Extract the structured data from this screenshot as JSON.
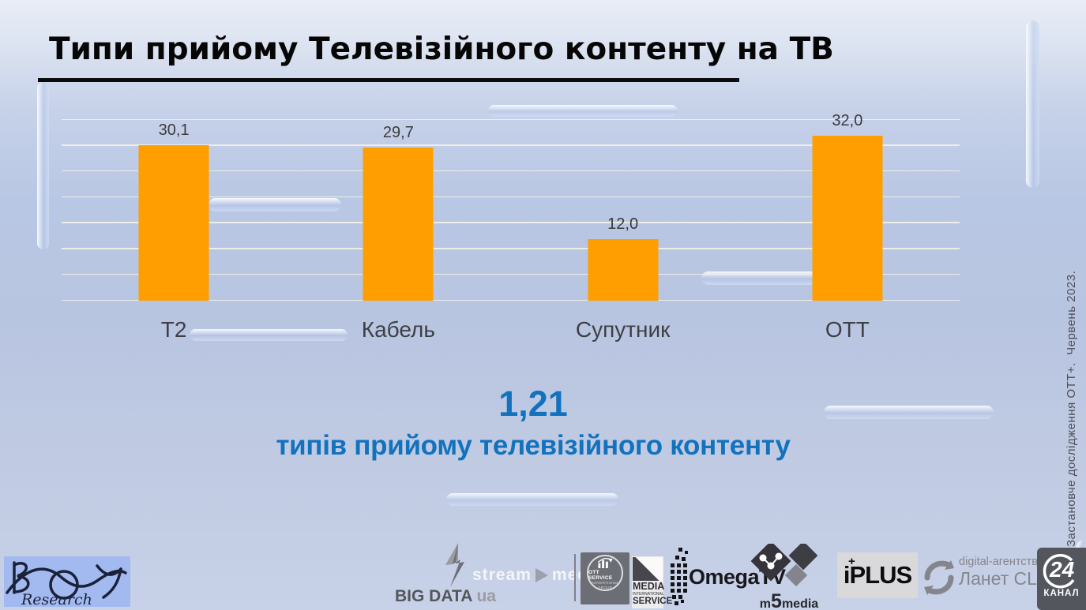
{
  "title": {
    "text": "Типи прийому Телевізійного контенту на ТВ"
  },
  "chart_data": {
    "type": "bar",
    "title": "Типи прийому Телевізійного контенту на ТВ",
    "categories": [
      "Т2",
      "Кабель",
      "Супутник",
      "ОТТ"
    ],
    "values": [
      30.1,
      29.7,
      12.0,
      32.0
    ],
    "value_labels": [
      "30,1",
      "29,7",
      "12,0",
      "32,0"
    ],
    "xlabel": "",
    "ylabel": "",
    "ylim": [
      0,
      35
    ],
    "gridline_step": 5,
    "grid": true,
    "legend": false,
    "bar_color": "#FF9E00"
  },
  "stat": {
    "value": "1,21",
    "label": "типів прийому телевізійного контенту",
    "color": "#1272BD"
  },
  "side_note": {
    "text": "Застановче дослідження ОТТ+.  Червень 2023."
  },
  "footer": {
    "research": {
      "text": "Research"
    },
    "bigdata": {
      "bold": "BIG DATA",
      "light": "ua"
    },
    "streammedia": {
      "left": "stream",
      "right": "media"
    },
    "ottservice": {
      "line1": "OTT SERVICE",
      "line2": "ADVERTISING GROUP"
    },
    "mediaintl": {
      "line1": "MEDIA",
      "line2": "INTERNATIONAL",
      "line3": "SERVICE"
    },
    "omega": {
      "text": "OmegaTV"
    },
    "m5": {
      "m": "m",
      "five": "5",
      "media": "media"
    },
    "iplus": {
      "plus": "+",
      "text": "iPLUS"
    },
    "lanet": {
      "line1": "digital-агентство",
      "line2": "Ланет CLICK"
    },
    "kanal24": {
      "number": "24",
      "caption": "КАНАЛ"
    }
  }
}
